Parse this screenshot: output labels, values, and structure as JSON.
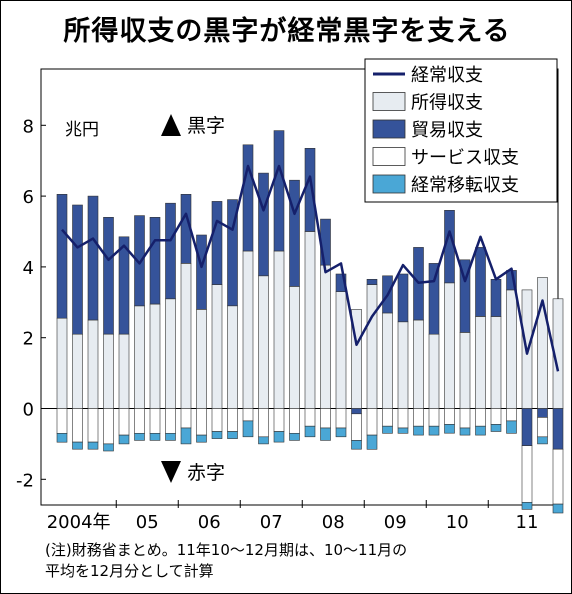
{
  "title": "所得収支の黒字が経常黒字を支える",
  "unit": "兆円",
  "surplus_label": "黒字",
  "deficit_label": "赤字",
  "note_line1": "(注)財務省まとめ。11年10～12月期は、10～11月の",
  "note_line2": "平均を12月分として計算",
  "colors": {
    "current": "#15206b",
    "income": "#e7ecf1",
    "trade": "#35539a",
    "services": "#ffffff",
    "transfers": "#4aa7d6",
    "line": "#15206b"
  },
  "chart_data": {
    "type": "bar",
    "stacked": true,
    "ylim": [
      -2.4,
      8.3
    ],
    "yticks": [
      "-2",
      "0",
      "2",
      "4",
      "6",
      "8"
    ],
    "year_labels": [
      "2004年",
      "05",
      "06",
      "07",
      "08",
      "09",
      "10",
      "11"
    ],
    "grid": false,
    "legend_position": "top-right",
    "legend": [
      "経常収支",
      "所得収支",
      "貿易収支",
      "サービス収支",
      "経常移転収支"
    ],
    "series": [
      {
        "name": "経常収支",
        "type": "line",
        "values": [
          5.05,
          4.55,
          4.8,
          4.2,
          4.6,
          4.1,
          4.75,
          4.75,
          5.5,
          4.0,
          5.3,
          5.05,
          6.85,
          5.6,
          6.85,
          5.5,
          6.55,
          3.85,
          4.1,
          1.8,
          2.6,
          3.2,
          4.05,
          3.55,
          3.6,
          5.0,
          3.6,
          4.85,
          3.65,
          3.95,
          1.55,
          3.05,
          1.05
        ]
      },
      {
        "name": "所得収支",
        "values": [
          2.55,
          2.1,
          2.5,
          2.1,
          2.1,
          2.9,
          2.95,
          3.1,
          4.1,
          2.8,
          3.5,
          2.9,
          4.45,
          3.75,
          4.45,
          3.45,
          5.0,
          4.05,
          3.3,
          2.8,
          3.5,
          2.7,
          2.45,
          2.5,
          2.1,
          3.55,
          2.15,
          2.6,
          2.6,
          3.35,
          3.35,
          3.7,
          3.1
        ]
      },
      {
        "name": "貿易収支",
        "values": [
          3.5,
          3.65,
          3.5,
          3.3,
          2.75,
          2.55,
          2.45,
          2.7,
          1.95,
          2.1,
          2.35,
          3.0,
          3.0,
          2.9,
          3.4,
          3.0,
          2.35,
          1.3,
          0.5,
          -0.15,
          0.15,
          1.05,
          1.35,
          2.05,
          2.0,
          2.05,
          2.05,
          1.95,
          1.05,
          0.55,
          -1.05,
          -0.25,
          -1.15
        ]
      },
      {
        "name": "サービス収支",
        "values": [
          -0.7,
          -0.95,
          -0.95,
          -1.0,
          -0.75,
          -0.7,
          -0.7,
          -0.7,
          -0.55,
          -0.75,
          -0.65,
          -0.65,
          -0.35,
          -0.8,
          -0.65,
          -0.7,
          -0.5,
          -0.55,
          -0.55,
          -0.75,
          -0.75,
          -0.5,
          -0.55,
          -0.5,
          -0.5,
          -0.45,
          -0.55,
          -0.5,
          -0.45,
          -0.35,
          -1.6,
          -0.55,
          -1.55
        ]
      },
      {
        "name": "経常移転収支",
        "values": [
          -0.25,
          -0.2,
          -0.2,
          -0.2,
          -0.25,
          -0.2,
          -0.2,
          -0.2,
          -0.45,
          -0.2,
          -0.2,
          -0.2,
          -0.45,
          -0.2,
          -0.3,
          -0.2,
          -0.3,
          -0.35,
          -0.25,
          -0.25,
          -0.4,
          -0.2,
          -0.15,
          -0.25,
          -0.25,
          -0.25,
          -0.2,
          -0.25,
          -0.2,
          -0.35,
          -0.2,
          -0.2,
          -0.25
        ]
      }
    ]
  }
}
